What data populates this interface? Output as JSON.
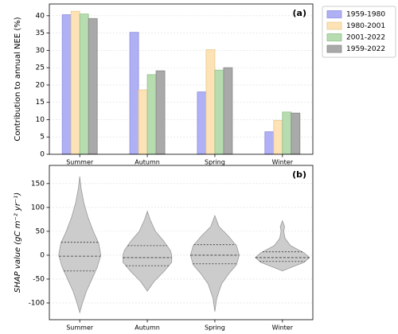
{
  "chart_data": [
    {
      "type": "bar",
      "title": "(a)",
      "ylabel": "Contribution to annual NEE (%)",
      "categories": [
        "Summer",
        "Autumn",
        "Spring",
        "Winter"
      ],
      "series": [
        {
          "name": "1959-1980",
          "color": "#b0b0f5",
          "edge": "#8c8ce0",
          "values": [
            40.3,
            35.2,
            18.0,
            6.5
          ]
        },
        {
          "name": "1980-2001",
          "color": "#fde2b5",
          "edge": "#e8c890",
          "values": [
            41.3,
            18.6,
            30.2,
            9.8
          ]
        },
        {
          "name": "2001-2022",
          "color": "#b6dcb0",
          "edge": "#90c088",
          "values": [
            40.5,
            23.0,
            24.3,
            12.2
          ]
        },
        {
          "name": "1959-2022",
          "color": "#a9a9a9",
          "edge": "#888888",
          "values": [
            39.2,
            24.1,
            25.0,
            11.9
          ]
        }
      ],
      "ylim": [
        0,
        43.4
      ],
      "yticks": [
        0,
        5,
        10,
        15,
        20,
        25,
        30,
        35,
        40
      ],
      "grid": true,
      "legend": "outside-right"
    },
    {
      "type": "violin",
      "title": "(b)",
      "ylabel": "SHAP value (gC m⁻² yr⁻¹)",
      "categories": [
        "Summer",
        "Autumn",
        "Spring",
        "Winter"
      ],
      "color": "#cccccc",
      "violins": [
        {
          "shape_y": [
            165,
            140,
            110,
            80,
            50,
            25,
            0,
            -25,
            -50,
            -75,
            -100,
            -120
          ],
          "shape_width": [
            0,
            0.05,
            0.15,
            0.3,
            0.5,
            0.7,
            0.78,
            0.65,
            0.45,
            0.25,
            0.1,
            0
          ],
          "quartiles": [
            -33,
            -2,
            27
          ]
        },
        {
          "shape_y": [
            92,
            75,
            50,
            30,
            10,
            0,
            -15,
            -35,
            -55,
            -75
          ],
          "shape_width": [
            0,
            0.1,
            0.3,
            0.6,
            0.85,
            0.9,
            0.9,
            0.6,
            0.25,
            0
          ],
          "quartiles": [
            -22,
            -5,
            20
          ]
        },
        {
          "shape_y": [
            83,
            60,
            40,
            20,
            0,
            -20,
            -40,
            -60,
            -90,
            -118
          ],
          "shape_width": [
            0,
            0.15,
            0.5,
            0.8,
            0.9,
            0.8,
            0.5,
            0.25,
            0.07,
            0
          ],
          "quartiles": [
            -18,
            0,
            22
          ]
        },
        {
          "shape_y": [
            72,
            60,
            50,
            35,
            20,
            5,
            -5,
            -15,
            -25,
            -33
          ],
          "shape_width": [
            0,
            0.08,
            0.05,
            0.1,
            0.3,
            0.8,
            1,
            0.8,
            0.35,
            0
          ],
          "quartiles": [
            -13,
            -5,
            7
          ]
        }
      ],
      "ylim": [
        -135,
        188
      ],
      "yticks": [
        -100,
        -50,
        0,
        50,
        100,
        150
      ],
      "grid": true
    }
  ]
}
